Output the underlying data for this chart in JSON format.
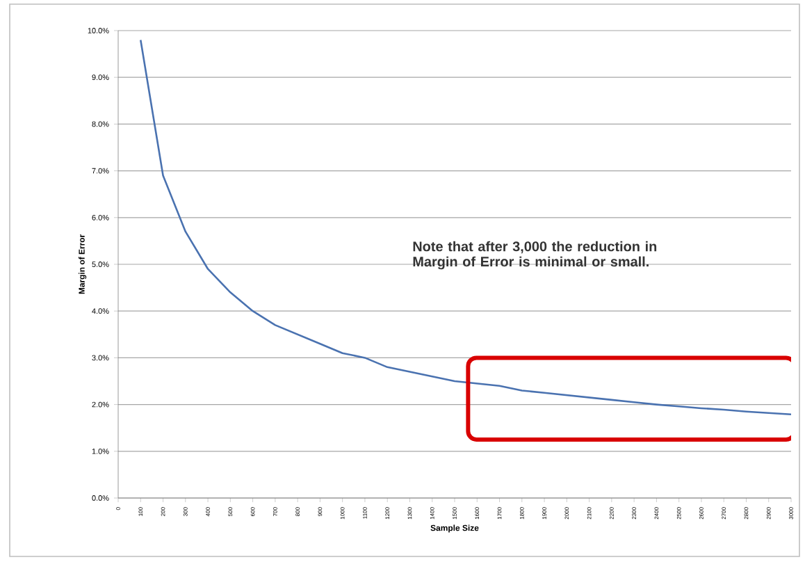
{
  "chart_data": {
    "type": "line",
    "xlabel": "Sample Size",
    "ylabel": "Margin of Error",
    "x": [
      100,
      200,
      300,
      400,
      500,
      600,
      700,
      800,
      900,
      1000,
      1100,
      1200,
      1300,
      1400,
      1500,
      1600,
      1700,
      1800,
      1900,
      2000,
      2100,
      2200,
      2300,
      2400,
      2500,
      2600,
      2700,
      2800,
      2900,
      3000
    ],
    "series": [
      {
        "color": "#4a72b0",
        "values": [
          9.8,
          6.9,
          5.7,
          4.9,
          4.4,
          4.0,
          3.7,
          3.5,
          3.3,
          3.1,
          3.0,
          2.8,
          2.7,
          2.6,
          2.5,
          2.45,
          2.4,
          2.3,
          2.25,
          2.2,
          2.15,
          2.1,
          2.05,
          2.0,
          1.96,
          1.92,
          1.89,
          1.85,
          1.82,
          1.79
        ]
      }
    ],
    "xlim": [
      0,
      3000
    ],
    "xticks": [
      0,
      100,
      200,
      300,
      400,
      500,
      600,
      700,
      800,
      900,
      1000,
      1100,
      1200,
      1300,
      1400,
      1500,
      1600,
      1700,
      1800,
      1900,
      2000,
      2100,
      2200,
      2300,
      2400,
      2500,
      2600,
      2700,
      2800,
      2900,
      3000
    ],
    "ylim": [
      0,
      10
    ],
    "yticks": [
      {
        "value": 0,
        "label": "0.0%"
      },
      {
        "value": 1,
        "label": "1.0%"
      },
      {
        "value": 2,
        "label": "2.0%"
      },
      {
        "value": 3,
        "label": "3.0%"
      },
      {
        "value": 4,
        "label": "4.0%"
      },
      {
        "value": 5,
        "label": "5.0%"
      },
      {
        "value": 6,
        "label": "6.0%"
      },
      {
        "value": 7,
        "label": "7.0%"
      },
      {
        "value": 8,
        "label": "8.0%"
      },
      {
        "value": 9,
        "label": "9.0%"
      },
      {
        "value": 10,
        "label": "10.0%"
      }
    ],
    "grid": "y",
    "marker": "none",
    "line_style": "solid",
    "annotations": [
      "Note that after 3,000 the reduction in Margin of Error is minimal or small."
    ]
  }
}
